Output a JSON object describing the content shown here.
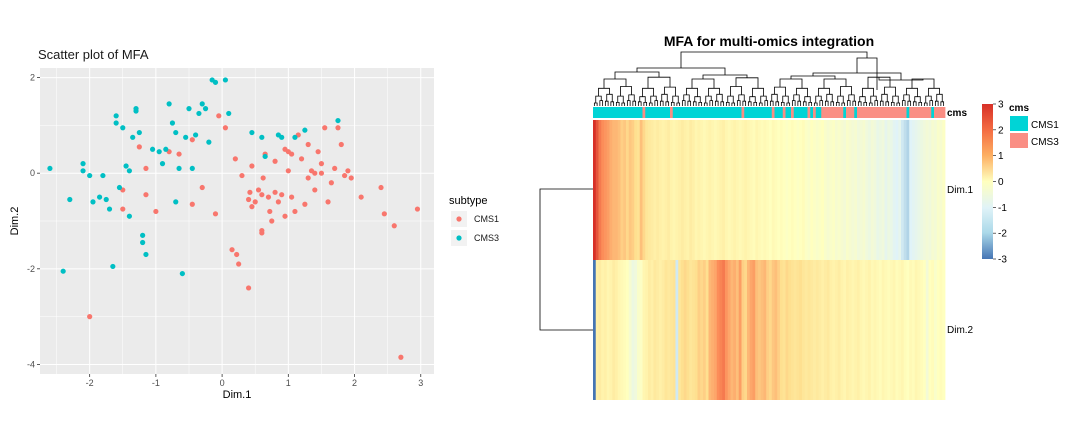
{
  "colors": {
    "CMS1": "#F8766D",
    "CMS3": "#00BFC4",
    "panel": "#EBEBEB",
    "grid": "#FFFFFF",
    "ann_CMS1": "#00D4D6",
    "ann_CMS3": "#FA8E84"
  },
  "scatter": {
    "title": "Scatter plot of MFA",
    "xlabel": "Dim.1",
    "ylabel": "Dim.2",
    "xticks": [
      "-2",
      "-1",
      "0",
      "1",
      "2",
      "3"
    ],
    "yticks": [
      "2",
      "0",
      "-2",
      "-4"
    ],
    "legend_title": "subtype",
    "legend_labels": [
      "CMS1",
      "CMS3"
    ]
  },
  "heatmap": {
    "title": "MFA for multi-omics integration",
    "rows": [
      "Dim.1",
      "Dim.2"
    ],
    "annotation_label": "cms",
    "annotation_legend_title": "cms",
    "annotation_legend_labels": [
      "CMS1",
      "CMS3"
    ],
    "colorbar_ticks": [
      "3",
      "2",
      "1",
      "0",
      "-1",
      "-2",
      "-3"
    ]
  },
  "chart_data": [
    {
      "type": "scatter",
      "title": "Scatter plot of MFA",
      "xlabel": "Dim.1",
      "ylabel": "Dim.2",
      "xlim": [
        -2.75,
        3.2
      ],
      "ylim": [
        -4.2,
        2.2
      ],
      "grid": true,
      "legend": "right",
      "series": [
        {
          "name": "CMS1",
          "points": [
            [
              -2.0,
              -3.0
            ],
            [
              -1.5,
              -0.35
            ],
            [
              -1.5,
              -0.75
            ],
            [
              -1.25,
              0.55
            ],
            [
              -1.15,
              0.1
            ],
            [
              -1.15,
              -0.45
            ],
            [
              -1.0,
              -0.8
            ],
            [
              -0.8,
              0.45
            ],
            [
              -0.65,
              0.4
            ],
            [
              -0.45,
              -0.65
            ],
            [
              -0.45,
              0.7
            ],
            [
              -0.3,
              -0.3
            ],
            [
              -0.1,
              -0.85
            ],
            [
              -0.05,
              1.2
            ],
            [
              0.05,
              0.95
            ],
            [
              0.15,
              -1.6
            ],
            [
              0.22,
              -1.7
            ],
            [
              0.25,
              -1.9
            ],
            [
              0.2,
              0.3
            ],
            [
              0.4,
              -2.4
            ],
            [
              0.4,
              -0.55
            ],
            [
              0.42,
              -0.4
            ],
            [
              0.45,
              -0.7
            ],
            [
              0.45,
              0.15
            ],
            [
              0.5,
              -0.6
            ],
            [
              0.55,
              -0.35
            ],
            [
              0.6,
              -0.45
            ],
            [
              0.62,
              -0.1
            ],
            [
              0.65,
              0.4
            ],
            [
              0.7,
              -0.5
            ],
            [
              0.72,
              -0.8
            ],
            [
              0.75,
              -1.0
            ],
            [
              0.8,
              -0.4
            ],
            [
              0.8,
              0.25
            ],
            [
              0.85,
              -0.6
            ],
            [
              0.9,
              -0.45
            ],
            [
              0.95,
              -0.9
            ],
            [
              1.0,
              0.05
            ],
            [
              1.0,
              0.45
            ],
            [
              1.05,
              -0.5
            ],
            [
              1.1,
              -0.8
            ],
            [
              1.15,
              0.8
            ],
            [
              1.2,
              0.3
            ],
            [
              1.3,
              -0.1
            ],
            [
              1.35,
              0.05
            ],
            [
              1.4,
              -0.35
            ],
            [
              1.45,
              0.45
            ],
            [
              1.5,
              0.2
            ],
            [
              1.55,
              0.95
            ],
            [
              1.6,
              -0.6
            ],
            [
              1.65,
              -0.2
            ],
            [
              1.7,
              0.1
            ],
            [
              1.75,
              0.95
            ],
            [
              1.8,
              0.6
            ],
            [
              1.85,
              -0.05
            ],
            [
              1.9,
              0.05
            ],
            [
              1.95,
              -0.1
            ],
            [
              2.1,
              -0.5
            ],
            [
              2.4,
              -0.3
            ],
            [
              2.45,
              -0.85
            ],
            [
              2.6,
              -1.1
            ],
            [
              2.7,
              -3.85
            ],
            [
              2.95,
              -0.75
            ],
            [
              1.3,
              0.6
            ],
            [
              1.5,
              0.0
            ],
            [
              0.3,
              -0.05
            ],
            [
              1.25,
              -0.65
            ],
            [
              0.95,
              0.5
            ],
            [
              1.05,
              0.4
            ],
            [
              0.6,
              -1.2
            ],
            [
              0.6,
              -1.25
            ],
            [
              1.4,
              0.0
            ]
          ]
        },
        {
          "name": "CMS3",
          "points": [
            [
              -2.6,
              0.1
            ],
            [
              -2.4,
              -2.05
            ],
            [
              -2.3,
              -0.55
            ],
            [
              -2.1,
              0.2
            ],
            [
              -2.1,
              0.05
            ],
            [
              -2.0,
              -0.05
            ],
            [
              -1.95,
              -0.6
            ],
            [
              -1.85,
              -0.5
            ],
            [
              -1.8,
              -0.05
            ],
            [
              -1.75,
              -0.55
            ],
            [
              -1.7,
              -0.75
            ],
            [
              -1.65,
              -1.95
            ],
            [
              -1.6,
              1.2
            ],
            [
              -1.6,
              1.05
            ],
            [
              -1.55,
              -0.3
            ],
            [
              -1.5,
              0.95
            ],
            [
              -1.45,
              0.15
            ],
            [
              -1.4,
              0.05
            ],
            [
              -1.4,
              -0.9
            ],
            [
              -1.35,
              0.75
            ],
            [
              -1.3,
              1.3
            ],
            [
              -1.3,
              1.35
            ],
            [
              -1.25,
              0.85
            ],
            [
              -1.2,
              -1.3
            ],
            [
              -1.2,
              -1.45
            ],
            [
              -1.15,
              -1.7
            ],
            [
              -1.05,
              0.5
            ],
            [
              -0.95,
              0.45
            ],
            [
              -0.9,
              0.2
            ],
            [
              -0.85,
              0.5
            ],
            [
              -0.8,
              1.45
            ],
            [
              -0.75,
              1.05
            ],
            [
              -0.7,
              -0.6
            ],
            [
              -0.7,
              0.85
            ],
            [
              -0.65,
              0.1
            ],
            [
              -0.6,
              -2.1
            ],
            [
              -0.55,
              0.75
            ],
            [
              -0.5,
              1.35
            ],
            [
              -0.45,
              0.1
            ],
            [
              -0.4,
              0.8
            ],
            [
              -0.35,
              1.25
            ],
            [
              -0.3,
              1.45
            ],
            [
              -0.25,
              1.35
            ],
            [
              -0.2,
              0.65
            ],
            [
              -0.15,
              1.95
            ],
            [
              -0.1,
              1.9
            ],
            [
              0.05,
              1.95
            ],
            [
              0.1,
              1.25
            ],
            [
              0.45,
              0.85
            ],
            [
              0.6,
              0.75
            ],
            [
              0.65,
              0.35
            ],
            [
              0.85,
              0.8
            ],
            [
              0.9,
              0.75
            ],
            [
              1.1,
              0.75
            ],
            [
              1.25,
              0.9
            ],
            [
              1.75,
              1.1
            ]
          ]
        }
      ]
    },
    {
      "type": "heatmap",
      "title": "MFA for multi-omics integration",
      "rows": [
        "Dim.1",
        "Dim.2"
      ],
      "value_range": [
        -3,
        3
      ],
      "column_annotation": "cms",
      "column_groups": [
        "CMS1",
        "CMS3"
      ],
      "column_cms": [
        1,
        1,
        1,
        1,
        1,
        1,
        1,
        1,
        1,
        1,
        1,
        1,
        1,
        1,
        1,
        1,
        1,
        1,
        2,
        1,
        1,
        1,
        1,
        1,
        1,
        1,
        1,
        1,
        2,
        1,
        1,
        1,
        1,
        1,
        1,
        1,
        1,
        1,
        1,
        1,
        1,
        1,
        1,
        1,
        1,
        1,
        1,
        1,
        1,
        1,
        1,
        1,
        1,
        1,
        2,
        1,
        1,
        1,
        1,
        1,
        1,
        1,
        1,
        1,
        1,
        2,
        1,
        1,
        1,
        2,
        1,
        1,
        2,
        1,
        1,
        1,
        1,
        1,
        2,
        1,
        2,
        1,
        1,
        2,
        2,
        2,
        2,
        2,
        2,
        2,
        2,
        1,
        2,
        2,
        2,
        1,
        2,
        2,
        2,
        2,
        2,
        2,
        2,
        2,
        2,
        2,
        2,
        2,
        2,
        2,
        2,
        2,
        2,
        2,
        1,
        2,
        2,
        2,
        2,
        2,
        2,
        2,
        2,
        1,
        2,
        2,
        2,
        2
      ],
      "values_dim1": [
        3.0,
        2.6,
        2.2,
        2.0,
        1.9,
        1.8,
        1.6,
        1.5,
        1.5,
        1.4,
        1.2,
        1.3,
        1.1,
        1.3,
        1.2,
        1.0,
        0.9,
        1.4,
        1.1,
        0.8,
        0.7,
        0.6,
        0.5,
        0.6,
        0.5,
        0.4,
        0.5,
        0.6,
        0.4,
        0.3,
        0.4,
        0.5,
        0.6,
        0.5,
        0.4,
        0.6,
        0.5,
        0.3,
        0.4,
        0.3,
        0.2,
        0.3,
        0.4,
        0.3,
        0.2,
        0.3,
        0.4,
        0.5,
        0.3,
        0.2,
        0.3,
        0.4,
        0.3,
        0.2,
        0.3,
        0.4,
        0.3,
        0.2,
        0.1,
        0.3,
        0.2,
        0.1,
        0.2,
        0.1,
        0.0,
        0.2,
        0.1,
        0.0,
        0.1,
        0.0,
        -0.1,
        0.0,
        0.1,
        0.0,
        -0.1,
        0.0,
        0.1,
        -0.1,
        -0.2,
        0.0,
        -0.1,
        -0.2,
        -0.1,
        0.0,
        -0.2,
        -0.3,
        -0.2,
        -0.1,
        -0.3,
        -0.2,
        -0.3,
        -0.4,
        -0.2,
        -0.3,
        -0.4,
        -0.3,
        -0.5,
        -0.4,
        -0.3,
        -0.5,
        -0.6,
        -0.4,
        -0.5,
        -0.7,
        -0.6,
        -0.5,
        -0.8,
        -0.6,
        -0.7,
        -0.9,
        -1.0,
        -0.8,
        -1.2,
        -1.4,
        -1.6,
        -1.0,
        -0.9,
        -0.8,
        -0.7,
        -0.6,
        -0.5,
        -0.4,
        -0.5,
        -0.3,
        -0.4,
        -0.2,
        -0.3,
        -0.1
      ],
      "values_dim2": [
        -3.0,
        0.5,
        0.6,
        0.4,
        0.5,
        0.3,
        0.4,
        0.6,
        0.5,
        0.3,
        0.2,
        0.1,
        0.0,
        -0.3,
        -0.6,
        -0.5,
        -0.2,
        -0.1,
        0.3,
        0.4,
        0.6,
        0.5,
        0.7,
        0.6,
        0.5,
        0.6,
        0.8,
        0.7,
        0.8,
        0.9,
        -1.2,
        0.8,
        1.0,
        1.1,
        1.0,
        0.8,
        0.9,
        1.0,
        1.2,
        1.1,
        1.2,
        1.0,
        1.5,
        1.6,
        1.7,
        2.0,
        2.1,
        2.2,
        1.9,
        1.7,
        1.5,
        1.6,
        1.4,
        1.8,
        1.2,
        1.1,
        1.5,
        1.7,
        1.8,
        1.4,
        1.3,
        1.4,
        1.5,
        1.2,
        1.1,
        1.3,
        1.4,
        1.2,
        1.0,
        0.9,
        1.1,
        1.0,
        0.9,
        0.8,
        0.9,
        1.0,
        0.8,
        0.7,
        0.8,
        0.7,
        0.6,
        0.7,
        0.6,
        0.5,
        0.6,
        0.7,
        0.5,
        0.4,
        0.5,
        0.6,
        0.4,
        0.3,
        0.5,
        0.4,
        0.3,
        0.4,
        0.5,
        0.3,
        0.2,
        0.3,
        0.4,
        0.2,
        0.3,
        0.2,
        0.1,
        0.3,
        0.2,
        0.1,
        0.2,
        0.3,
        0.1,
        0.2,
        0.3,
        0.1,
        0.0,
        0.2,
        0.1,
        0.3,
        0.2,
        0.1,
        0.0,
        -0.4,
        0.0,
        0.1,
        -0.2,
        0.0,
        0.1,
        0.0
      ]
    }
  ]
}
